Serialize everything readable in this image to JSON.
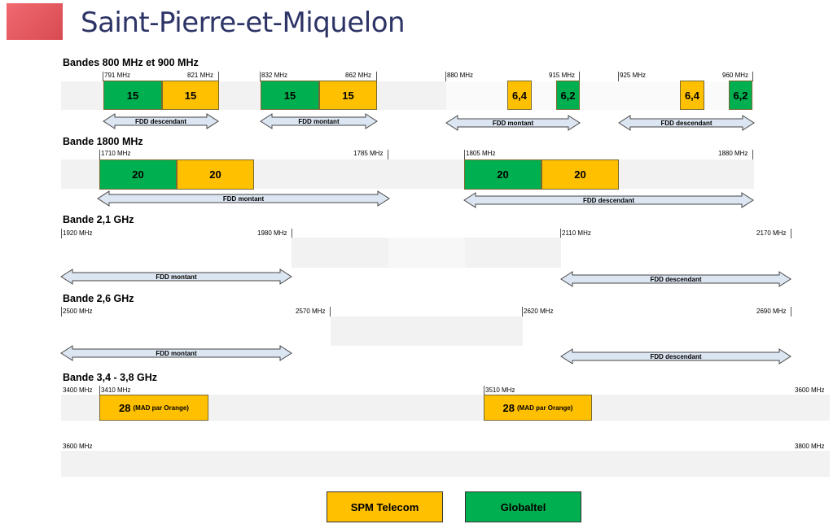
{
  "header": {
    "title": "Saint-Pierre-et-Miquelon"
  },
  "bands": {
    "b800": {
      "title": "Bandes 800 MHz et 900 MHz",
      "f791": "791 MHz",
      "f821": "821 MHz",
      "f832": "832 MHz",
      "f862": "862 MHz",
      "f880": "880 MHz",
      "f915": "915 MHz",
      "f925": "925 MHz",
      "f960": "960 MHz",
      "blocks": [
        "15",
        "15",
        "15",
        "15",
        "6,4",
        "6,2",
        "6,4",
        "6,2"
      ],
      "arrows": [
        "FDD descendant",
        "FDD montant",
        "FDD montant",
        "FDD descendant"
      ]
    },
    "b1800": {
      "title": "Bande 1800 MHz",
      "f1710": "1710 MHz",
      "f1785": "1785 MHz",
      "f1805": "1805 MHz",
      "f1880": "1880 MHz",
      "blocks": [
        "20",
        "20",
        "20",
        "20"
      ],
      "arrows": [
        "FDD montant",
        "FDD descendant"
      ]
    },
    "b2100": {
      "title": "Bande 2,1 GHz",
      "f1920": "1920 MHz",
      "f1980": "1980 MHz",
      "f2110": "2110 MHz",
      "f2170": "2170 MHz",
      "arrows": [
        "FDD montant",
        "FDD descendant"
      ]
    },
    "b2600": {
      "title": "Bande 2,6 GHz",
      "f2500": "2500 MHz",
      "f2570": "2570 MHz",
      "f2620": "2620 MHz",
      "f2690": "2690 MHz",
      "arrows": [
        "FDD montant",
        "FDD descendant"
      ]
    },
    "b3500": {
      "title": "Bande 3,4 - 3,8 GHz",
      "f3400": "3400 MHz",
      "f3410": "3410 MHz",
      "f3510": "3510 MHz",
      "f3600": "3600 MHz",
      "blocks": [
        {
          "value": "28",
          "note": "(MAD par Orange)"
        },
        {
          "value": "28",
          "note": "(MAD par Orange)"
        }
      ],
      "f3600b": "3600 MHz",
      "f3800": "3800 MHz"
    }
  },
  "legend": {
    "spm": "SPM Telecom",
    "globaltel": "Globaltel"
  },
  "colors": {
    "globaltel": "#00b050",
    "spm_telecom": "#ffc000",
    "arrow_fill": "#dce6f2",
    "title": "#2d3466"
  }
}
